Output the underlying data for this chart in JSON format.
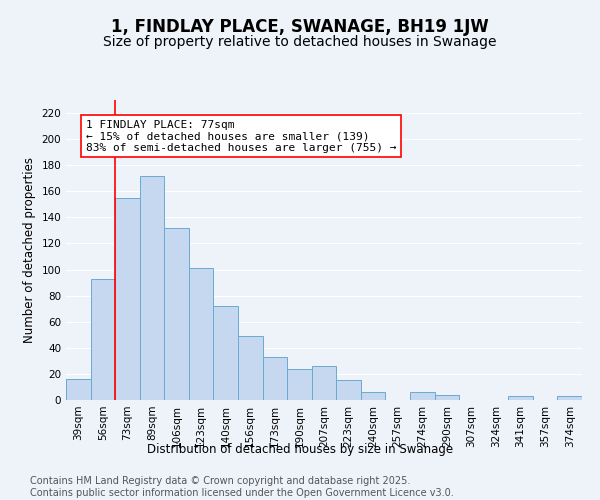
{
  "title": "1, FINDLAY PLACE, SWANAGE, BH19 1JW",
  "subtitle": "Size of property relative to detached houses in Swanage",
  "xlabel": "Distribution of detached houses by size in Swanage",
  "ylabel": "Number of detached properties",
  "bar_color": "#c5d8f0",
  "bar_edge_color": "#6aaad4",
  "background_color": "#eef2f9",
  "grid_color": "#ffffff",
  "categories": [
    "39sqm",
    "56sqm",
    "73sqm",
    "89sqm",
    "106sqm",
    "123sqm",
    "140sqm",
    "156sqm",
    "173sqm",
    "190sqm",
    "207sqm",
    "223sqm",
    "240sqm",
    "257sqm",
    "274sqm",
    "290sqm",
    "307sqm",
    "324sqm",
    "341sqm",
    "357sqm",
    "374sqm"
  ],
  "values": [
    16,
    93,
    155,
    172,
    132,
    101,
    72,
    49,
    33,
    24,
    26,
    15,
    6,
    0,
    6,
    4,
    0,
    0,
    3,
    0,
    3
  ],
  "red_line_index": 2,
  "annotation_text": "1 FINDLAY PLACE: 77sqm\n← 15% of detached houses are smaller (139)\n83% of semi-detached houses are larger (755) →",
  "ylim": [
    0,
    230
  ],
  "yticks": [
    0,
    20,
    40,
    60,
    80,
    100,
    120,
    140,
    160,
    180,
    200,
    220
  ],
  "footer_text": "Contains HM Land Registry data © Crown copyright and database right 2025.\nContains public sector information licensed under the Open Government Licence v3.0.",
  "title_fontsize": 12,
  "subtitle_fontsize": 10,
  "axis_label_fontsize": 8.5,
  "tick_fontsize": 7.5,
  "annotation_fontsize": 8,
  "footer_fontsize": 7
}
